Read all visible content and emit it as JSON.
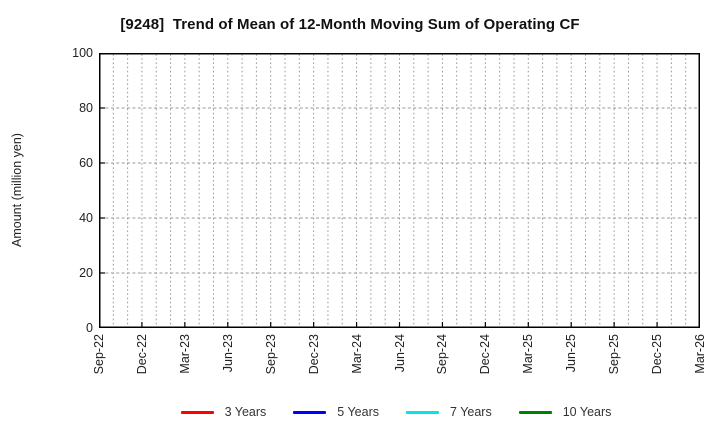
{
  "chart_data": {
    "type": "line",
    "title": "[9248]  Trend of Mean of 12-Month Moving Sum of Operating CF",
    "xlabel": "",
    "ylabel": "Amount (million yen)",
    "ylim": [
      0,
      100
    ],
    "yticks": [
      0,
      20,
      40,
      60,
      80,
      100
    ],
    "x_tick_labels": [
      "Sep-22",
      "Dec-22",
      "Mar-23",
      "Jun-23",
      "Sep-23",
      "Dec-23",
      "Mar-24",
      "Jun-24",
      "Sep-24",
      "Dec-24",
      "Mar-25",
      "Jun-25",
      "Sep-25",
      "Dec-25",
      "Mar-26"
    ],
    "months_per_tick": 3,
    "grid": true,
    "legend_position": "bottom",
    "axis_color": "#000000",
    "grid_color": "#999999",
    "series": [
      {
        "name": "3 Years",
        "color": "#ff0000",
        "values": []
      },
      {
        "name": "5 Years",
        "color": "#0000ff",
        "values": []
      },
      {
        "name": "7 Years",
        "color": "#00e5e5",
        "values": []
      },
      {
        "name": "10 Years",
        "color": "#008000",
        "values": []
      }
    ]
  }
}
